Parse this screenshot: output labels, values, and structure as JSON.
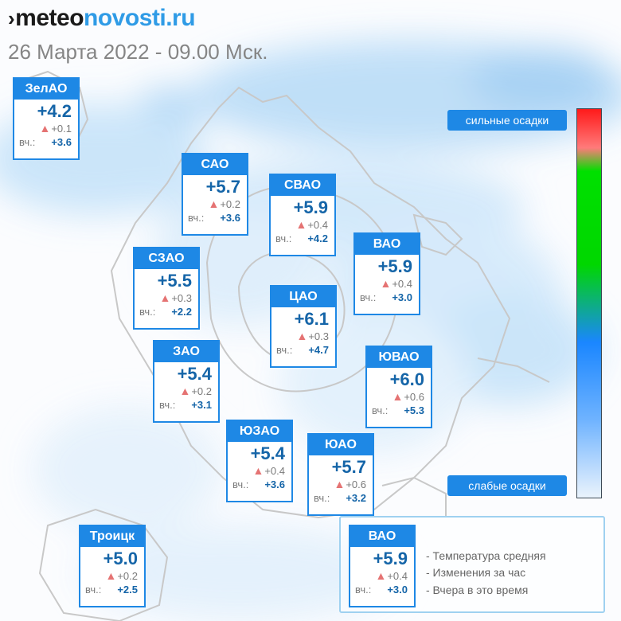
{
  "logo": {
    "chevron": "›",
    "part1": "meteo",
    "part2": "novosti.ru"
  },
  "datetime": "26 Марта 2022 - 09.00 Мск.",
  "yesterday_label": "вч.:",
  "districts": [
    {
      "id": "zelao",
      "name": "ЗелАО",
      "temp": "+4.2",
      "delta": "+0.1",
      "yesterday": "+3.6"
    },
    {
      "id": "sao",
      "name": "САО",
      "temp": "+5.7",
      "delta": "+0.2",
      "yesterday": "+3.6"
    },
    {
      "id": "svao",
      "name": "СВАО",
      "temp": "+5.9",
      "delta": "+0.4",
      "yesterday": "+4.2"
    },
    {
      "id": "vao",
      "name": "ВАО",
      "temp": "+5.9",
      "delta": "+0.4",
      "yesterday": "+3.0"
    },
    {
      "id": "szao",
      "name": "СЗАО",
      "temp": "+5.5",
      "delta": "+0.3",
      "yesterday": "+2.2"
    },
    {
      "id": "cao",
      "name": "ЦАО",
      "temp": "+6.1",
      "delta": "+0.3",
      "yesterday": "+4.7"
    },
    {
      "id": "zao",
      "name": "ЗАО",
      "temp": "+5.4",
      "delta": "+0.2",
      "yesterday": "+3.1"
    },
    {
      "id": "yuvao",
      "name": "ЮВАО",
      "temp": "+6.0",
      "delta": "+0.6",
      "yesterday": "+5.3"
    },
    {
      "id": "yuzao",
      "name": "ЮЗАО",
      "temp": "+5.4",
      "delta": "+0.4",
      "yesterday": "+3.6"
    },
    {
      "id": "yuao",
      "name": "ЮАО",
      "temp": "+5.7",
      "delta": "+0.6",
      "yesterday": "+3.2"
    },
    {
      "id": "troitsk",
      "name": "Троицк",
      "temp": "+5.0",
      "delta": "+0.2",
      "yesterday": "+2.5"
    }
  ],
  "scale": {
    "heavy": "сильные осадки",
    "light": "слабые осадки",
    "colors": [
      "#ff1a1a",
      "#00d700",
      "#1a86ff",
      "#eaf3fc"
    ]
  },
  "legend": {
    "sample": {
      "name": "ВАО",
      "temp": "+5.9",
      "delta": "+0.4",
      "yesterday": "+3.0"
    },
    "lines": [
      "- Температура средняя",
      "- Изменения за час",
      "- Вчера в это время"
    ]
  }
}
